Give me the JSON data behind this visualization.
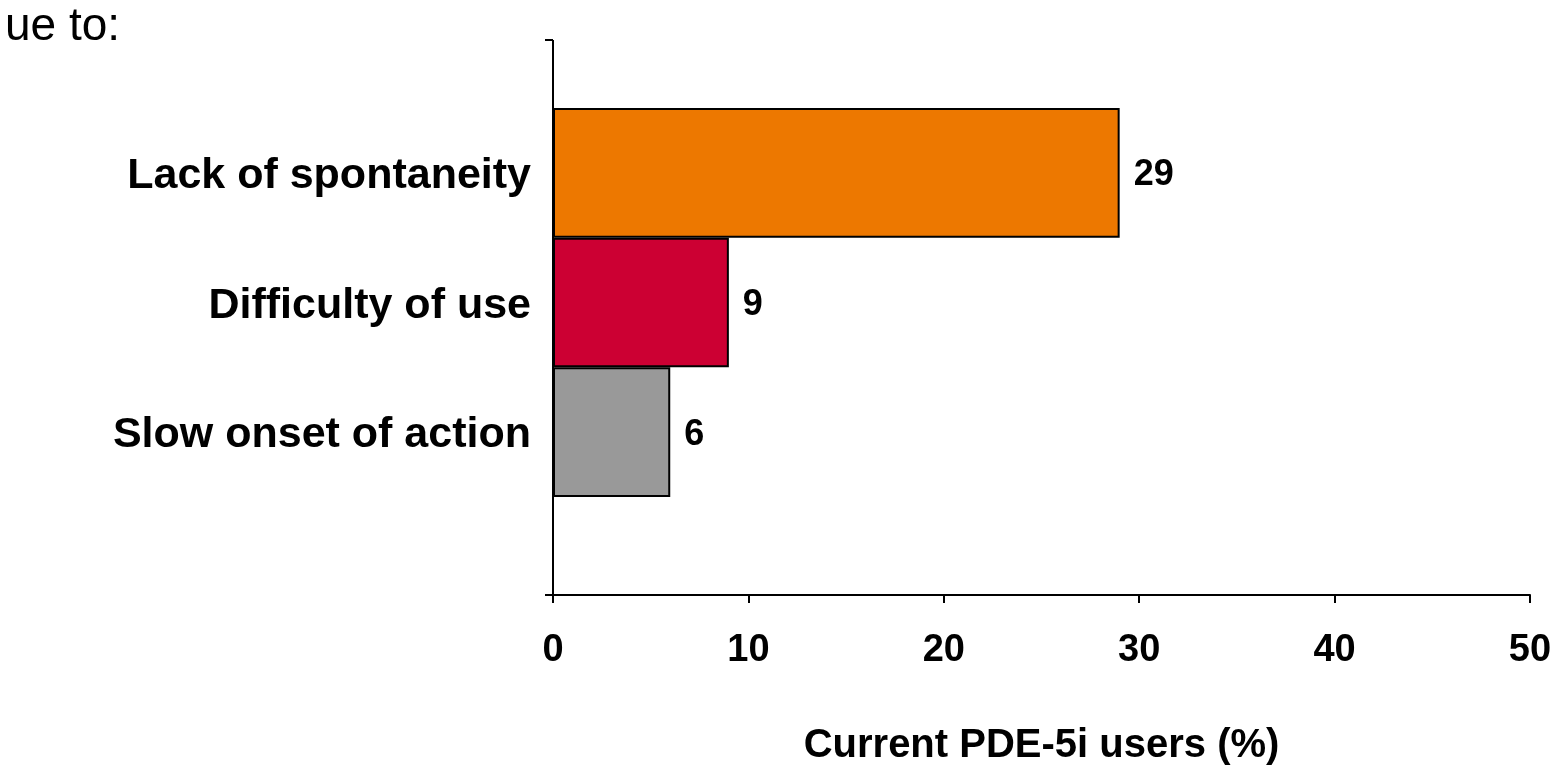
{
  "chart_data": {
    "type": "bar",
    "orientation": "horizontal",
    "title": "ue to:",
    "xlabel": "Current PDE-5i users (%)",
    "categories": [
      "Lack of spontaneity",
      "Difficulty of use",
      "Slow onset of action"
    ],
    "values": [
      29,
      9,
      6
    ],
    "colors": [
      "#ed7800",
      "#cc0033",
      "#999999"
    ],
    "xlim": [
      0,
      50
    ],
    "xticks": [
      0,
      10,
      20,
      30,
      40,
      50
    ],
    "data_labels": true
  }
}
